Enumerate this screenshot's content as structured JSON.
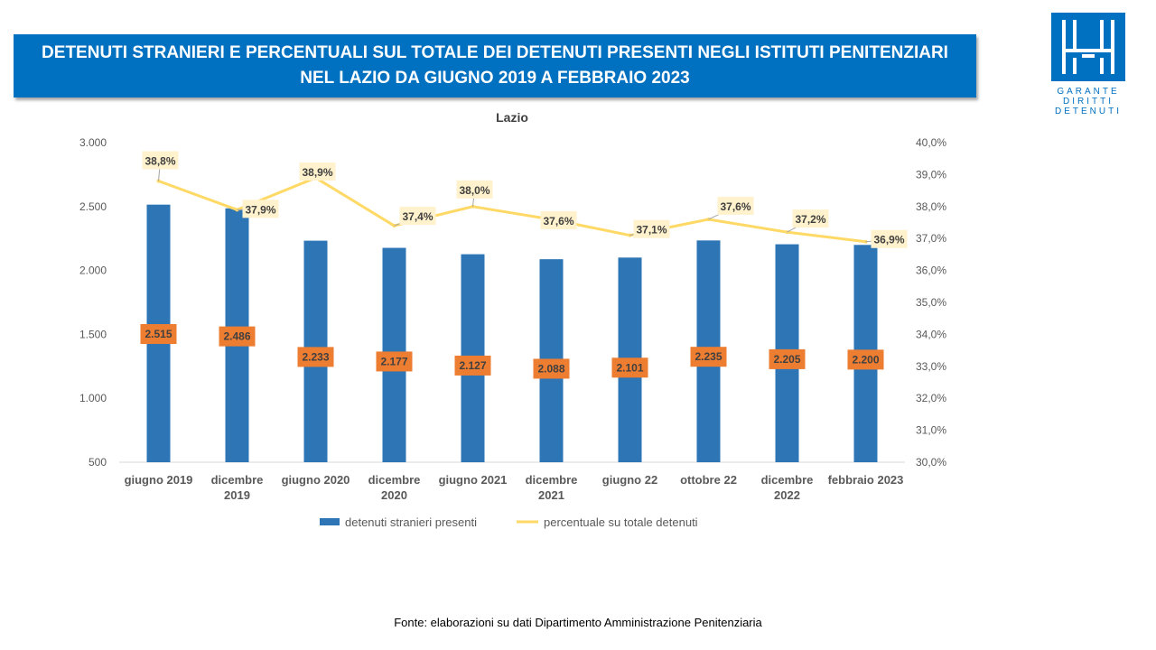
{
  "header": {
    "title_line1": "DETENUTI STRANIERI E PERCENTUALI SUL TOTALE DEI DETENUTI PRESENTI NEGLI ISTITUTI PENITENZIARI",
    "title_line2": "NEL LAZIO DA GIUGNO 2019 A FEBBRAIO 2023"
  },
  "logo": {
    "text_lines": [
      "GARANTE",
      "DIRITTI",
      "DETENUTI"
    ],
    "color": "#0070c0"
  },
  "chart_data": {
    "type": "bar",
    "title": "Lazio",
    "categories": [
      [
        "giugno 2019"
      ],
      [
        "dicembre",
        "2019"
      ],
      [
        "giugno 2020"
      ],
      [
        "dicembre",
        "2020"
      ],
      [
        "giugno 2021"
      ],
      [
        "dicembre",
        "2021"
      ],
      [
        "giugno 22"
      ],
      [
        "ottobre 22"
      ],
      [
        "dicembre",
        "2022"
      ],
      [
        "febbraio 2023"
      ]
    ],
    "series": [
      {
        "name": "detenuti stranieri presenti",
        "type": "bar",
        "axis": "left",
        "color": "#2e75b6",
        "values": [
          2515,
          2486,
          2233,
          2177,
          2127,
          2088,
          2101,
          2235,
          2205,
          2200
        ],
        "labels": [
          "2.515",
          "2.486",
          "2.233",
          "2.177",
          "2.127",
          "2.088",
          "2.101",
          "2.235",
          "2.205",
          "2.200"
        ],
        "label_bg": "#ed7d31"
      },
      {
        "name": "percentuale su totale detenuti",
        "type": "line",
        "axis": "right",
        "color": "#ffd966",
        "values": [
          38.8,
          37.9,
          38.9,
          37.4,
          38.0,
          37.6,
          37.1,
          37.6,
          37.2,
          36.9
        ],
        "labels": [
          "38,8%",
          "37,9%",
          "38,9%",
          "37,4%",
          "38,0%",
          "37,6%",
          "37,1%",
          "37,6%",
          "37,2%",
          "36,9%"
        ],
        "label_bg": "#fff2cc"
      }
    ],
    "y_left": {
      "min": 500,
      "max": 3000,
      "ticks": [
        500,
        1000,
        1500,
        2000,
        2500,
        3000
      ],
      "tick_labels": [
        "500",
        "1.000",
        "1.500",
        "2.000",
        "2.500",
        "3.000"
      ]
    },
    "y_right": {
      "min": 30,
      "max": 40,
      "ticks": [
        30,
        31,
        32,
        33,
        34,
        35,
        36,
        37,
        38,
        39,
        40
      ],
      "tick_labels": [
        "30,0%",
        "31,0%",
        "32,0%",
        "33,0%",
        "34,0%",
        "35,0%",
        "36,0%",
        "37,0%",
        "38,0%",
        "39,0%",
        "40,0%"
      ]
    },
    "grid": false,
    "legend": "bottom"
  },
  "footer": {
    "source": "Fonte: elaborazioni su dati Dipartimento Amministrazione Penitenziaria"
  }
}
